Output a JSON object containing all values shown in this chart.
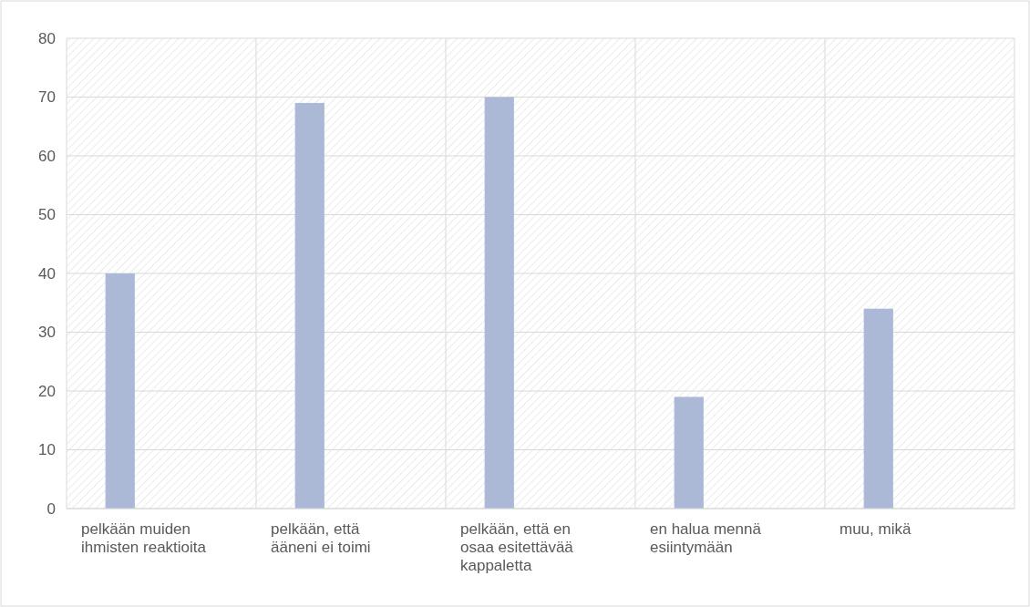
{
  "chart_data": {
    "type": "bar",
    "categories": [
      "pelkään muiden ihmisten reaktioita",
      "pelkään, että ääneni ei toimi",
      "pelkään, että en osaa esitettävää kappaletta",
      "en halua mennä esiintymään",
      "muu, mikä"
    ],
    "values": [
      40,
      69,
      70,
      19,
      34
    ],
    "color": "#abb9d6",
    "ylim": [
      0,
      80
    ],
    "yticks": [
      0,
      10,
      20,
      30,
      40,
      50,
      60,
      70,
      80
    ],
    "grid": true
  }
}
